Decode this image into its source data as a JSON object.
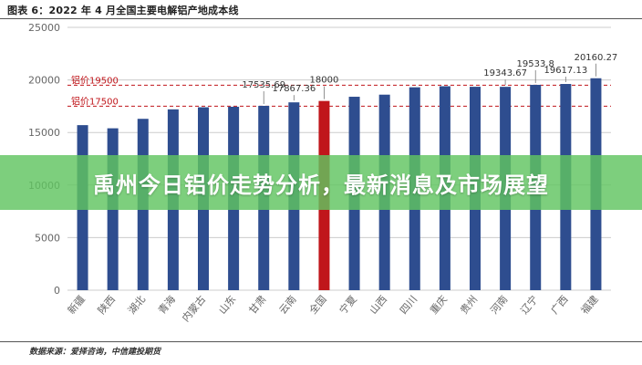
{
  "figure": {
    "title": "图表 6：2022 年 4 月全国主要电解铝产地成本线",
    "source": "数据来源：爱择咨询，中信建投期货"
  },
  "banner": {
    "text": "禹州今日铝价走势分析，最新消息及市场展望"
  },
  "colors": {
    "bar": "#2e4d8f",
    "highlight_bar": "#c0161b",
    "ref_line": "#c0161b",
    "grid": "#cccccc",
    "axis_text": "#666666",
    "banner": "#5fc45f"
  },
  "chart_data": {
    "type": "bar",
    "title": "图表 6：2022 年 4 月全国主要电解铝产地成本线",
    "xlabel": "",
    "ylabel": "",
    "ylim": [
      0,
      25000
    ],
    "yticks": [
      0,
      5000,
      10000,
      15000,
      20000,
      25000
    ],
    "grid": true,
    "categories": [
      "新疆",
      "陕西",
      "湖北",
      "青海",
      "内蒙古",
      "山东",
      "甘肃",
      "云南",
      "全国",
      "宁夏",
      "山西",
      "四川",
      "重庆",
      "贵州",
      "河南",
      "辽宁",
      "广西",
      "福建"
    ],
    "values": [
      15700,
      15400,
      16300,
      17200,
      17400,
      17450,
      17535.69,
      17867.36,
      18000,
      18400,
      18600,
      19300,
      19400,
      19350,
      19343.67,
      19533.8,
      19617.13,
      20160.27
    ],
    "highlight_index": 8,
    "data_labels": [
      {
        "index": 6,
        "text": "17535.69"
      },
      {
        "index": 7,
        "text": "17867.36"
      },
      {
        "index": 8,
        "text": "18000"
      },
      {
        "index": 14,
        "text": "19343.67"
      },
      {
        "index": 15,
        "text": "19533.8"
      },
      {
        "index": 16,
        "text": "19617.13"
      },
      {
        "index": 17,
        "text": "20160.27"
      }
    ],
    "reference_lines": [
      {
        "value": 19500,
        "label": "铝价19500"
      },
      {
        "value": 17500,
        "label": "铝价17500"
      }
    ]
  }
}
